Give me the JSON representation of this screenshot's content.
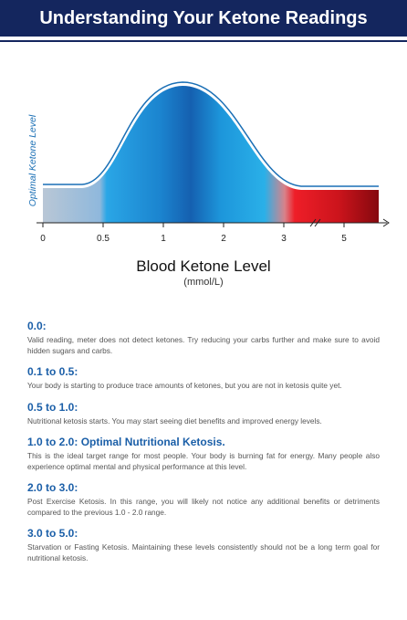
{
  "header": {
    "title": "Understanding Your Ketone Readings"
  },
  "chart": {
    "y_axis_label": "Optimal Ketone Level",
    "x_ticks": [
      "0",
      "0.5",
      "1",
      "2",
      "3",
      "5"
    ],
    "title": "Blood Ketone Level",
    "subtitle": "(mmol/L)"
  },
  "sections": [
    {
      "heading": "0.0:",
      "text": "Valid reading, meter does not detect ketones. Try reducing your carbs further and make sure to avoid hidden sugars and carbs."
    },
    {
      "heading": "0.1 to 0.5:",
      "text": "Your body is starting to produce trace amounts of ketones, but you are not in ketosis quite yet."
    },
    {
      "heading": "0.5 to 1.0:",
      "text": "Nutritional ketosis starts. You may start seeing diet benefits and improved energy levels."
    },
    {
      "heading": "1.0 to 2.0: Optimal Nutritional Ketosis.",
      "text": "This is the ideal target range for most people. Your body is burning fat for energy. Many people also experience optimal mental and physical performance at this level."
    },
    {
      "heading": "2.0 to 3.0:",
      "text": "Post Exercise Ketosis. In this range, you will likely not notice any additional benefits or detriments compared to the previous 1.0 - 2.0 range."
    },
    {
      "heading": "3.0 to 5.0:",
      "text": "Starvation or Fasting Ketosis. Maintaining these levels consistently should not be a long term goal for nutritional ketosis."
    }
  ]
}
